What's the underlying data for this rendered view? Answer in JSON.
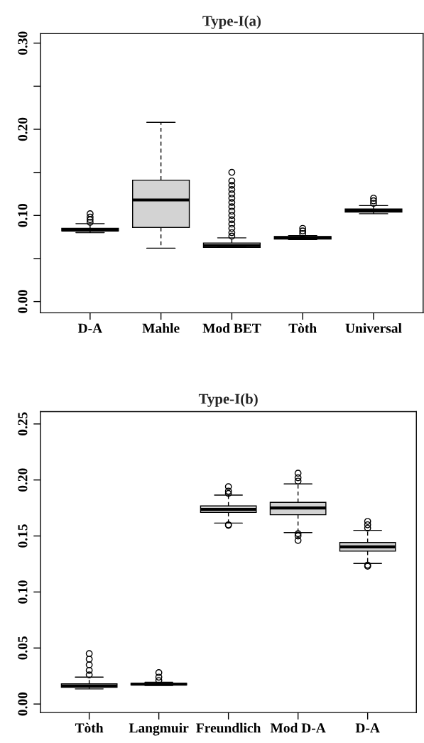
{
  "chart_data": [
    {
      "type": "box",
      "title": "Type-I(a)",
      "categories": [
        "D-A",
        "Mahle",
        "Mod BET",
        "Tòth",
        "Universal"
      ],
      "ylim": [
        -0.013,
        0.311
      ],
      "yticks": [
        {
          "value": 0.0,
          "label": "0.00"
        },
        {
          "value": 0.05,
          "label": null
        },
        {
          "value": 0.1,
          "label": "0.10"
        },
        {
          "value": 0.15,
          "label": null
        },
        {
          "value": 0.2,
          "label": "0.20"
        },
        {
          "value": 0.25,
          "label": null
        },
        {
          "value": 0.3,
          "label": "0.30"
        }
      ],
      "grid": false,
      "series": [
        {
          "color": "#d3d3d3",
          "boxes": [
            {
              "low": 0.08,
              "q1": 0.082,
              "median": 0.083,
              "q3": 0.085,
              "high": 0.0905,
              "outliers": [
                0.092,
                0.095,
                0.098,
                0.102
              ]
            },
            {
              "low": 0.062,
              "q1": 0.086,
              "median": 0.118,
              "q3": 0.141,
              "high": 0.208
            },
            {
              "low": 0.063,
              "q1": 0.063,
              "median": 0.065,
              "q3": 0.068,
              "high": 0.074,
              "outliers": [
                0.076,
                0.08,
                0.085,
                0.09,
                0.095,
                0.1,
                0.105,
                0.11,
                0.115,
                0.12,
                0.125,
                0.13,
                0.135,
                0.14,
                0.15
              ]
            },
            {
              "low": 0.072,
              "q1": 0.0725,
              "median": 0.074,
              "q3": 0.0755,
              "high": 0.0765,
              "outliers": [
                0.079,
                0.082,
                0.085
              ]
            },
            {
              "low": 0.102,
              "q1": 0.104,
              "median": 0.1055,
              "q3": 0.1075,
              "high": 0.1115,
              "outliers": [
                0.114,
                0.117,
                0.12
              ]
            }
          ]
        }
      ]
    },
    {
      "type": "box",
      "title": "Type-I(b)",
      "categories": [
        "Tòth",
        "Langmuir",
        "Freundlich",
        "Mod D-A",
        "D-A"
      ],
      "ylim": [
        -0.0076,
        0.261
      ],
      "yticks": [
        {
          "value": 0.0,
          "label": "0.00"
        },
        {
          "value": 0.05,
          "label": "0.05"
        },
        {
          "value": 0.1,
          "label": "0.10"
        },
        {
          "value": 0.15,
          "label": "0.15"
        },
        {
          "value": 0.2,
          "label": "0.20"
        },
        {
          "value": 0.25,
          "label": "0.25"
        }
      ],
      "grid": false,
      "series": [
        {
          "color": "#d3d3d3",
          "boxes": [
            {
              "low": 0.0135,
              "q1": 0.015,
              "median": 0.016,
              "q3": 0.018,
              "high": 0.024,
              "outliers": [
                0.026,
                0.03,
                0.035,
                0.04,
                0.045
              ]
            },
            {
              "low": 0.0165,
              "q1": 0.017,
              "median": 0.0177,
              "q3": 0.0185,
              "high": 0.0195,
              "outliers": [
                0.021,
                0.024,
                0.028
              ]
            },
            {
              "low": 0.1615,
              "q1": 0.171,
              "median": 0.1737,
              "q3": 0.1768,
              "high": 0.1865,
              "outliers": [
                0.1595,
                0.16,
                0.188,
                0.19,
                0.194
              ]
            },
            {
              "low": 0.153,
              "q1": 0.169,
              "median": 0.175,
              "q3": 0.18,
              "high": 0.1965,
              "outliers": [
                0.146,
                0.15,
                0.152,
                0.199,
                0.202,
                0.206
              ]
            },
            {
              "low": 0.1255,
              "q1": 0.1365,
              "median": 0.1403,
              "q3": 0.1442,
              "high": 0.155,
              "outliers": [
                0.123,
                0.124,
                0.157,
                0.16,
                0.163
              ]
            }
          ]
        }
      ]
    }
  ]
}
